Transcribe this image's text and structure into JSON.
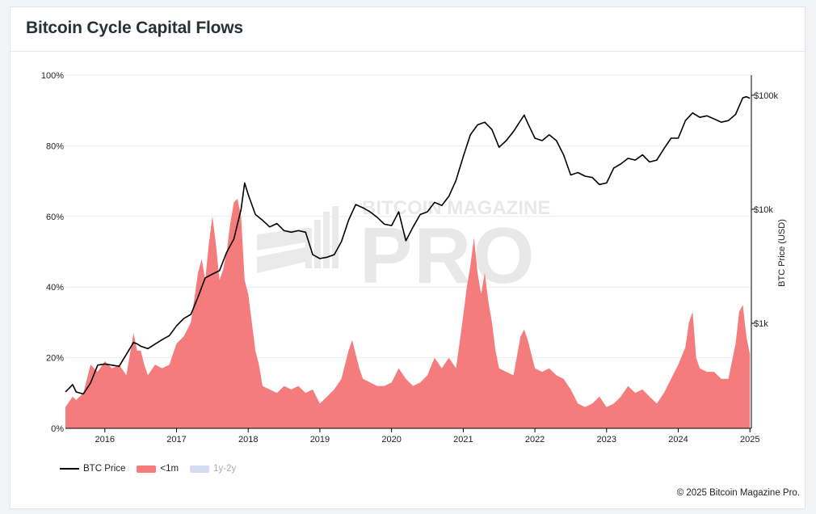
{
  "header": {
    "title": "Bitcoin Cycle Capital Flows"
  },
  "footer": {
    "copyright": "© 2025 Bitcoin Magazine Pro."
  },
  "watermark": {
    "line1": "BITCOIN MAGAZINE",
    "line2": "PRO"
  },
  "legend": [
    {
      "label": "BTC Price",
      "color": "#000000",
      "kind": "line",
      "active": true
    },
    {
      "label": "<1m",
      "color": "#f47c7c",
      "kind": "area",
      "active": true
    },
    {
      "label": "1y-2y",
      "color": "#c9d3f0",
      "kind": "area",
      "active": false
    }
  ],
  "chart_data": {
    "type": "area",
    "x_range": [
      2015.45,
      2025.02
    ],
    "x_ticks": [
      "2016",
      "2017",
      "2018",
      "2019",
      "2020",
      "2021",
      "2022",
      "2023",
      "2024",
      "2025"
    ],
    "y_left": {
      "ticks": [
        "0%",
        "20%",
        "40%",
        "60%",
        "80%",
        "100%"
      ],
      "range": [
        0,
        100
      ]
    },
    "y_right": {
      "label": "BTC Price (USD)",
      "scale": "log",
      "ticks": [
        "$1k",
        "$10k",
        "$100k"
      ],
      "range": [
        120,
        150000
      ]
    },
    "series": [
      {
        "name": "<1m",
        "axis": "left",
        "color": "#f47c7c",
        "x": [
          2015.45,
          2015.55,
          2015.6,
          2015.7,
          2015.8,
          2015.9,
          2016.0,
          2016.1,
          2016.2,
          2016.3,
          2016.4,
          2016.45,
          2016.5,
          2016.55,
          2016.6,
          2016.7,
          2016.8,
          2016.9,
          2017.0,
          2017.1,
          2017.2,
          2017.3,
          2017.35,
          2017.4,
          2017.45,
          2017.5,
          2017.55,
          2017.6,
          2017.65,
          2017.7,
          2017.75,
          2017.8,
          2017.85,
          2017.9,
          2017.95,
          2018.0,
          2018.05,
          2018.1,
          2018.15,
          2018.2,
          2018.3,
          2018.4,
          2018.5,
          2018.6,
          2018.7,
          2018.8,
          2018.9,
          2019.0,
          2019.1,
          2019.2,
          2019.3,
          2019.4,
          2019.45,
          2019.5,
          2019.55,
          2019.6,
          2019.7,
          2019.8,
          2019.9,
          2020.0,
          2020.1,
          2020.2,
          2020.3,
          2020.4,
          2020.5,
          2020.6,
          2020.7,
          2020.8,
          2020.9,
          2021.0,
          2021.05,
          2021.1,
          2021.15,
          2021.2,
          2021.25,
          2021.3,
          2021.35,
          2021.4,
          2021.45,
          2021.5,
          2021.6,
          2021.7,
          2021.8,
          2021.85,
          2021.9,
          2022.0,
          2022.1,
          2022.2,
          2022.3,
          2022.4,
          2022.5,
          2022.6,
          2022.7,
          2022.8,
          2022.9,
          2023.0,
          2023.1,
          2023.2,
          2023.3,
          2023.4,
          2023.5,
          2023.6,
          2023.7,
          2023.8,
          2023.9,
          2024.0,
          2024.1,
          2024.15,
          2024.2,
          2024.25,
          2024.3,
          2024.4,
          2024.5,
          2024.6,
          2024.7,
          2024.8,
          2024.85,
          2024.9,
          2024.95,
          2025.0
        ],
        "values": [
          6,
          9,
          8,
          10,
          18,
          16,
          19,
          17,
          18,
          15,
          27,
          22,
          22,
          18,
          15,
          18,
          17,
          18,
          24,
          26,
          30,
          44,
          48,
          42,
          52,
          60,
          52,
          42,
          45,
          50,
          58,
          64,
          65,
          60,
          42,
          38,
          30,
          22,
          18,
          12,
          11,
          10,
          12,
          11,
          12,
          10,
          11,
          7,
          9,
          11,
          14,
          22,
          25,
          21,
          17,
          14,
          13,
          12,
          12,
          13,
          17,
          14,
          12,
          13,
          15,
          20,
          17,
          20,
          17,
          32,
          40,
          46,
          54,
          44,
          38,
          44,
          36,
          30,
          22,
          17,
          16,
          15,
          26,
          28,
          25,
          17,
          16,
          17,
          15,
          14,
          11,
          7,
          6,
          7,
          9,
          6,
          7,
          9,
          12,
          10,
          11,
          9,
          7,
          10,
          14,
          18,
          23,
          30,
          33,
          20,
          17,
          16,
          16,
          14,
          14,
          24,
          33,
          35,
          26,
          21
        ]
      },
      {
        "name": "BTC Price",
        "axis": "right",
        "color": "#000000",
        "x": [
          2015.45,
          2015.55,
          2015.6,
          2015.7,
          2015.8,
          2015.9,
          2016.0,
          2016.2,
          2016.4,
          2016.45,
          2016.5,
          2016.6,
          2016.8,
          2016.9,
          2017.0,
          2017.1,
          2017.2,
          2017.3,
          2017.4,
          2017.5,
          2017.6,
          2017.7,
          2017.8,
          2017.9,
          2017.95,
          2018.0,
          2018.1,
          2018.2,
          2018.3,
          2018.4,
          2018.5,
          2018.6,
          2018.7,
          2018.8,
          2018.9,
          2019.0,
          2019.1,
          2019.2,
          2019.3,
          2019.4,
          2019.5,
          2019.6,
          2019.7,
          2019.8,
          2019.9,
          2020.0,
          2020.1,
          2020.2,
          2020.3,
          2020.4,
          2020.5,
          2020.6,
          2020.7,
          2020.8,
          2020.9,
          2021.0,
          2021.1,
          2021.2,
          2021.3,
          2021.4,
          2021.5,
          2021.6,
          2021.7,
          2021.8,
          2021.85,
          2021.9,
          2022.0,
          2022.1,
          2022.2,
          2022.3,
          2022.4,
          2022.5,
          2022.6,
          2022.7,
          2022.8,
          2022.9,
          2023.0,
          2023.1,
          2023.2,
          2023.3,
          2023.4,
          2023.5,
          2023.6,
          2023.7,
          2023.8,
          2023.9,
          2024.0,
          2024.1,
          2024.2,
          2024.3,
          2024.4,
          2024.5,
          2024.6,
          2024.7,
          2024.8,
          2024.9,
          2024.95,
          2025.0
        ],
        "values": [
          250,
          290,
          250,
          240,
          300,
          430,
          440,
          420,
          680,
          660,
          630,
          600,
          720,
          780,
          950,
          1100,
          1200,
          1700,
          2500,
          2700,
          2900,
          4200,
          5500,
          10000,
          17000,
          13500,
          9000,
          8000,
          7000,
          7500,
          6500,
          6300,
          6500,
          6300,
          4000,
          3700,
          3800,
          4000,
          5200,
          8000,
          11000,
          10300,
          9500,
          8500,
          7400,
          7200,
          9500,
          5300,
          7000,
          9000,
          9500,
          11500,
          10800,
          13000,
          18000,
          29000,
          45000,
          55000,
          58000,
          50000,
          35000,
          40000,
          48000,
          60000,
          67000,
          57000,
          42000,
          40000,
          45000,
          40000,
          30000,
          20000,
          21000,
          19500,
          19000,
          16500,
          17000,
          23000,
          25000,
          28000,
          27000,
          30000,
          26000,
          27000,
          34000,
          42000,
          42000,
          60000,
          70000,
          64000,
          66000,
          62000,
          58000,
          60000,
          68000,
          95000,
          97000,
          94000
        ]
      }
    ]
  }
}
